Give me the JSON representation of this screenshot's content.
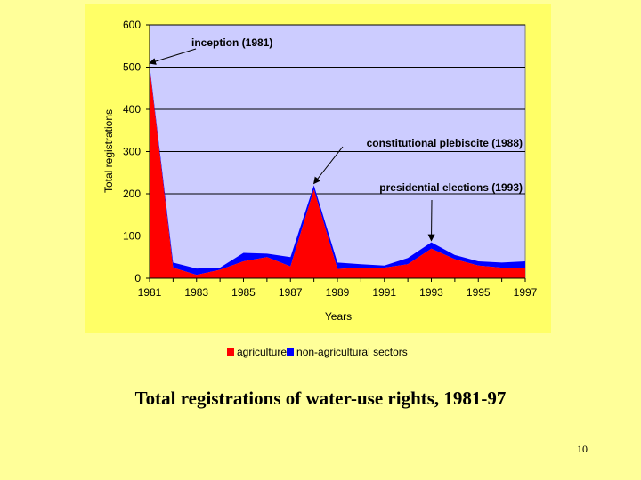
{
  "caption": "Total registrations of water-use rights, 1981-97",
  "page_number": "10",
  "colors": {
    "page_background": "#ffff99",
    "chart_panel": "#ffff66",
    "plot_area": "#ccccff",
    "agriculture": "#ff0000",
    "non_agricultural": "#0000ff"
  },
  "chart_data": {
    "type": "area",
    "stacked": true,
    "title": "",
    "xlabel": "Years",
    "ylabel": "Total registrations",
    "ylim": [
      0,
      600
    ],
    "yticks": [
      "0",
      "100",
      "200",
      "300",
      "400",
      "500",
      "600"
    ],
    "xtick_labels": [
      "1981",
      "1983",
      "1985",
      "1987",
      "1989",
      "1991",
      "1993",
      "1995",
      "1997"
    ],
    "x": [
      1981,
      1982,
      1983,
      1984,
      1985,
      1986,
      1987,
      1988,
      1989,
      1990,
      1991,
      1992,
      1993,
      1994,
      1995,
      1996,
      1997
    ],
    "grid": "horizontal",
    "legend_position": "bottom",
    "series": [
      {
        "name": "agriculture",
        "values": [
          500,
          25,
          8,
          20,
          40,
          50,
          28,
          210,
          22,
          25,
          25,
          33,
          70,
          45,
          30,
          25,
          25
        ]
      },
      {
        "name": "non-agricultural sectors",
        "values": [
          5,
          12,
          15,
          5,
          20,
          8,
          22,
          10,
          15,
          8,
          5,
          15,
          15,
          10,
          10,
          12,
          15
        ]
      }
    ],
    "annotations": [
      {
        "text": "inception (1981)",
        "x": 1981,
        "y": 505
      },
      {
        "text": "constitutional plebiscite (1988)",
        "x": 1988,
        "y": 220
      },
      {
        "text": "presidential elections (1993)",
        "x": 1993,
        "y": 85
      }
    ]
  }
}
